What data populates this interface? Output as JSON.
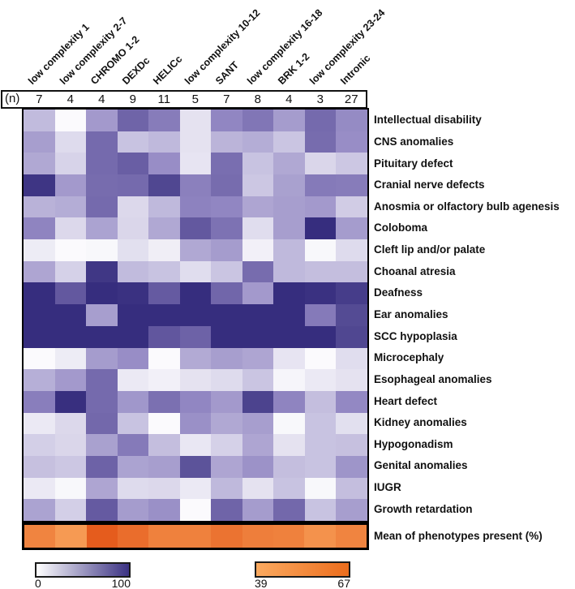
{
  "figure": {
    "n_label": "(n)",
    "legend_purple": {
      "min": "0",
      "max": "100"
    },
    "legend_orange": {
      "min": "39",
      "max": "67"
    },
    "colors": {
      "purple_scale_low": "#ffffff",
      "purple_scale_mid": "#9186c2",
      "purple_scale_high": "#2c2376",
      "orange_scale_low": "#fbab62",
      "orange_scale_high": "#e55c1d",
      "border": "#000000"
    }
  },
  "chart_data": {
    "type": "heatmap",
    "columns": [
      "low complexity 1",
      "low complexity 2-7",
      "CHROMO 1-2",
      "DEXDc",
      "HELICc",
      "low complexity 10-12",
      "SANT",
      "low complexity 16-18",
      "BRK 1-2",
      "low complexity 23-24",
      "Intronic"
    ],
    "n_per_column": [
      7,
      4,
      4,
      9,
      11,
      5,
      7,
      8,
      4,
      3,
      27
    ],
    "value_scale": {
      "min": 0,
      "max": 100
    },
    "rows": [
      {
        "label": "Intellectual disability",
        "values": [
          28,
          2,
          42,
          67,
          55,
          12,
          50,
          58,
          41,
          64,
          48
        ]
      },
      {
        "label": "CNS anomalies",
        "values": [
          40,
          15,
          64,
          25,
          29,
          12,
          31,
          34,
          24,
          63,
          47
        ]
      },
      {
        "label": "Pituitary defect",
        "values": [
          36,
          18,
          64,
          70,
          47,
          11,
          62,
          25,
          36,
          17,
          23
        ]
      },
      {
        "label": "Cranial nerve defects",
        "values": [
          91,
          42,
          63,
          64,
          82,
          53,
          63,
          23,
          39,
          56,
          55
        ]
      },
      {
        "label": "Anosmia or olfactory bulb agenesis",
        "values": [
          32,
          34,
          64,
          16,
          29,
          52,
          50,
          37,
          40,
          42,
          21
        ]
      },
      {
        "label": "Coloboma",
        "values": [
          51,
          16,
          38,
          17,
          36,
          73,
          60,
          14,
          40,
          95,
          41
        ]
      },
      {
        "label": "Cleft lip and/or palate",
        "values": [
          8,
          2,
          3,
          13,
          7,
          36,
          41,
          6,
          29,
          3,
          15
        ]
      },
      {
        "label": "Choanal atresia",
        "values": [
          37,
          19,
          90,
          28,
          25,
          14,
          24,
          63,
          29,
          27,
          27
        ]
      },
      {
        "label": "Deafness",
        "values": [
          95,
          73,
          95,
          93,
          72,
          95,
          66,
          42,
          95,
          93,
          87
        ]
      },
      {
        "label": "Ear anomalies",
        "values": [
          95,
          95,
          40,
          95,
          95,
          95,
          95,
          95,
          95,
          56,
          80
        ]
      },
      {
        "label": "SCC hypoplasia",
        "values": [
          95,
          95,
          95,
          95,
          74,
          68,
          95,
          95,
          95,
          95,
          82
        ]
      },
      {
        "label": "Microcephaly",
        "values": [
          2,
          8,
          41,
          47,
          2,
          35,
          40,
          37,
          11,
          2,
          14
        ]
      },
      {
        "label": "Esophageal anomalies",
        "values": [
          33,
          42,
          64,
          9,
          6,
          12,
          15,
          24,
          4,
          9,
          12
        ]
      },
      {
        "label": "Heart defect",
        "values": [
          54,
          94,
          64,
          43,
          61,
          50,
          42,
          84,
          51,
          27,
          49
        ]
      },
      {
        "label": "Kidney anomalies",
        "values": [
          9,
          16,
          65,
          25,
          2,
          46,
          36,
          40,
          3,
          25,
          13
        ]
      },
      {
        "label": "Hypogonadism",
        "values": [
          20,
          17,
          39,
          56,
          27,
          10,
          19,
          37,
          12,
          25,
          26
        ]
      },
      {
        "label": "Genital anomalies",
        "values": [
          26,
          23,
          68,
          38,
          40,
          76,
          37,
          45,
          27,
          25,
          44
        ]
      },
      {
        "label": "IUGR",
        "values": [
          9,
          3,
          37,
          15,
          16,
          9,
          29,
          12,
          25,
          3,
          27
        ]
      },
      {
        "label": "Growth retardation",
        "values": [
          38,
          20,
          72,
          41,
          46,
          2,
          67,
          41,
          65,
          25,
          40
        ]
      }
    ],
    "mean_row": {
      "label": "Mean of phenotypes present (%)",
      "scale_min": 39,
      "scale_max": 67,
      "values": [
        53,
        45,
        67,
        61,
        54,
        54,
        59,
        55,
        54,
        48,
        53
      ]
    },
    "legend": {
      "purple_range": [
        0,
        100
      ],
      "orange_range": [
        39,
        67
      ],
      "position": "bottom"
    }
  }
}
